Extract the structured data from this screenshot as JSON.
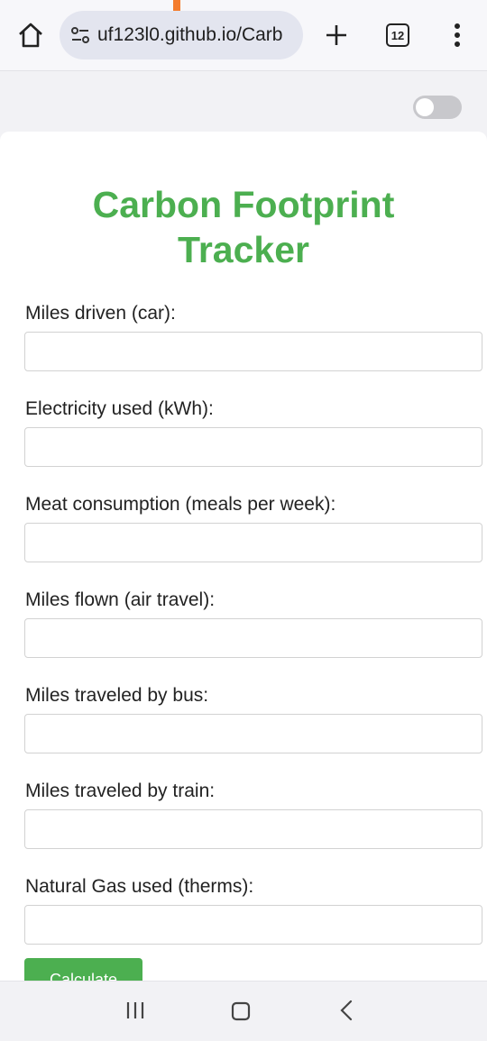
{
  "browser": {
    "url": "uf123l0.github.io/Carb",
    "tab_count": "12",
    "icons": {
      "home": "home-icon",
      "site_settings": "tune-icon",
      "new_tab": "plus-icon",
      "menu": "more-vert-icon"
    }
  },
  "theme_toggle": {
    "state": "off"
  },
  "page": {
    "title": "Carbon Footprint Tracker",
    "fields": [
      {
        "label": "Miles driven (car):",
        "value": ""
      },
      {
        "label": "Electricity used (kWh):",
        "value": ""
      },
      {
        "label": "Meat consumption (meals per week):",
        "value": ""
      },
      {
        "label": "Miles flown (air travel):",
        "value": ""
      },
      {
        "label": "Miles traveled by bus:",
        "value": ""
      },
      {
        "label": "Miles traveled by train:",
        "value": ""
      },
      {
        "label": "Natural Gas used (therms):",
        "value": ""
      }
    ],
    "calculate_label": "Calculate"
  },
  "nav_bar": {
    "icons": [
      "recent-apps-icon",
      "home-icon",
      "back-icon"
    ]
  },
  "colors": {
    "accent": "#4caf50",
    "toggle_off": "#c8c8cc",
    "url_pill": "#e3e5ef"
  }
}
